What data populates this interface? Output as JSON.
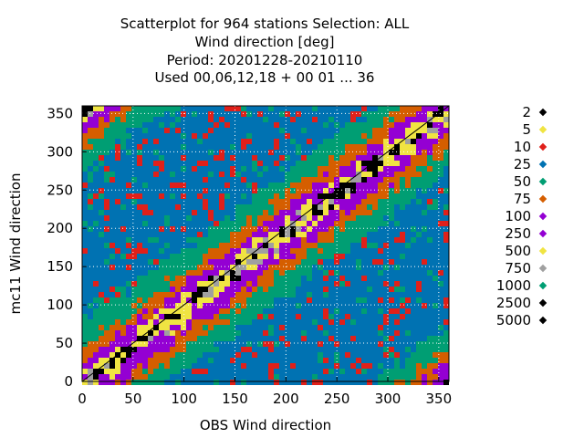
{
  "chart_data": {
    "type": "scatter",
    "title_lines": [
      "Scatterplot for  964 stations Selection: ALL",
      "Wind direction [deg]",
      "Period: 20201228-20210110",
      "Used  00,06,12,18 + 00 01 ... 36"
    ],
    "xlabel": "OBS Wind direction",
    "ylabel": "mc11 Wind direction",
    "xlim": [
      0,
      360
    ],
    "ylim": [
      0,
      360
    ],
    "xticks": [
      0,
      50,
      100,
      150,
      200,
      250,
      300,
      350
    ],
    "yticks": [
      0,
      50,
      100,
      150,
      200,
      250,
      300,
      350
    ],
    "grid": true,
    "diagonal_line": true,
    "legend_position": "right",
    "density_levels": [
      {
        "label": "2",
        "color": "#000000"
      },
      {
        "label": "5",
        "color": "#f0e442"
      },
      {
        "label": "10",
        "color": "#e0201a"
      },
      {
        "label": "25",
        "color": "#0072b2"
      },
      {
        "label": "50",
        "color": "#009e73"
      },
      {
        "label": "75",
        "color": "#d55e00"
      },
      {
        "label": "100",
        "color": "#9400d3"
      },
      {
        "label": "250",
        "color": "#9400d3"
      },
      {
        "label": "500",
        "color": "#f0e442"
      },
      {
        "label": "750",
        "color": "#a0a0a0"
      },
      {
        "label": "1000",
        "color": "#009e73"
      },
      {
        "label": "2500",
        "color": "#000000"
      },
      {
        "label": "5000",
        "color": "#000000"
      }
    ]
  }
}
